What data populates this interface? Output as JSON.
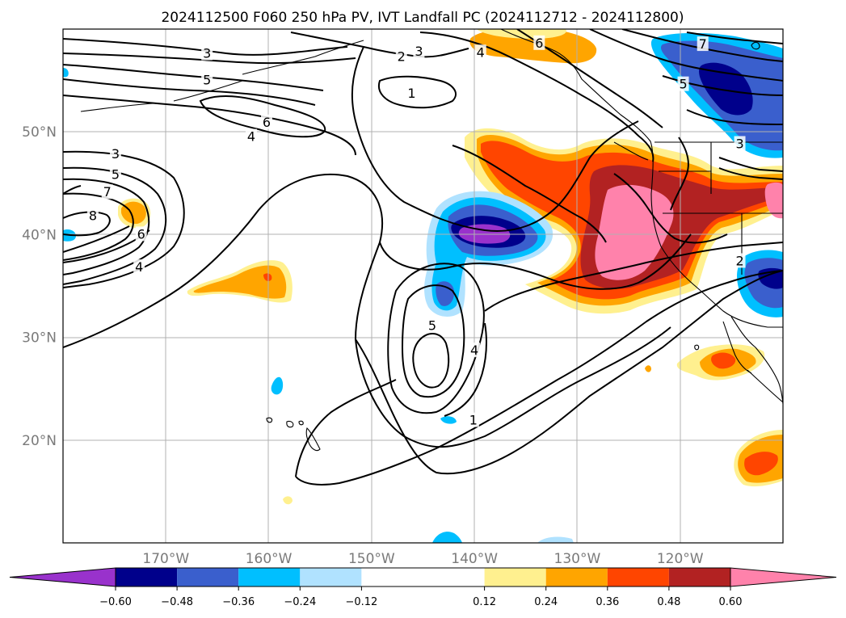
{
  "chart_data": {
    "type": "heatmap",
    "title": "2024112500 F060 250 hPa PV, IVT Landfall PC (2024112712 - 2024112800)",
    "map_extent": {
      "lon_min": -180,
      "lon_max": -110,
      "lat_min": 10,
      "lat_max": 60
    },
    "grid": true,
    "x_ticks": [
      {
        "lon": -170,
        "label": "170°W"
      },
      {
        "lon": -160,
        "label": "160°W"
      },
      {
        "lon": -150,
        "label": "150°W"
      },
      {
        "lon": -140,
        "label": "140°W"
      },
      {
        "lon": -130,
        "label": "130°W"
      },
      {
        "lon": -120,
        "label": "120°W"
      }
    ],
    "y_ticks": [
      {
        "lat": 50,
        "label": "50°N"
      },
      {
        "lat": 40,
        "label": "40°N"
      },
      {
        "lat": 30,
        "label": "30°N"
      },
      {
        "lat": 20,
        "label": "20°N"
      }
    ],
    "colorbar": {
      "orientation": "horizontal",
      "extend": "both",
      "boundaries": [
        -0.72,
        -0.6,
        -0.48,
        -0.36,
        -0.24,
        -0.12,
        0.12,
        0.24,
        0.36,
        0.48,
        0.6,
        0.72
      ],
      "colors": [
        "#9932cc",
        "#00008b",
        "#3a5fcd",
        "#00bfff",
        "#b0e2ff",
        "#ffffff",
        "#fff08f",
        "#ffa500",
        "#ff4500",
        "#b22222",
        "#ff82ab"
      ],
      "tick_labels": [
        "−0.60",
        "−0.48",
        "−0.36",
        "−0.24",
        "−0.12",
        "0.12",
        "0.24",
        "0.36",
        "0.48",
        "0.60"
      ]
    },
    "shaded_features": [
      {
        "lon": -133.5,
        "lat": 42.0,
        "value": 0.6,
        "note": "large positive anomaly off US west coast"
      },
      {
        "lon": -140.0,
        "lat": 40.0,
        "value": -0.66,
        "note": "negative anomaly west of positive"
      },
      {
        "lon": -116.0,
        "lat": 56.0,
        "value": -0.5
      },
      {
        "lon": -112.0,
        "lat": 36.0,
        "value": -0.45
      },
      {
        "lon": -143.5,
        "lat": 34.5,
        "value": -0.4
      },
      {
        "lon": -138.0,
        "lat": 58.5,
        "value": 0.3
      },
      {
        "lon": -160.0,
        "lat": 36.0,
        "value": 0.3
      },
      {
        "lon": -117.0,
        "lat": 29.0,
        "value": 0.3
      },
      {
        "lon": -112.5,
        "lat": 18.0,
        "value": 0.4
      },
      {
        "lon": -111.5,
        "lat": 43.0,
        "value": 0.5
      },
      {
        "lon": -176.0,
        "lat": 42.0,
        "value": 0.25
      }
    ],
    "contour_labels": [
      {
        "text": "3",
        "lon": -166.0,
        "lat": 57.6
      },
      {
        "text": "5",
        "lon": -166.0,
        "lat": 55.0
      },
      {
        "text": "6",
        "lon": -160.2,
        "lat": 50.9
      },
      {
        "text": "4",
        "lon": -161.7,
        "lat": 49.5
      },
      {
        "text": "3",
        "lon": -174.9,
        "lat": 47.8
      },
      {
        "text": "5",
        "lon": -174.9,
        "lat": 45.8
      },
      {
        "text": "7",
        "lon": -175.7,
        "lat": 44.1
      },
      {
        "text": "8",
        "lon": -177.1,
        "lat": 41.8
      },
      {
        "text": "6",
        "lon": -172.4,
        "lat": 40.0
      },
      {
        "text": "4",
        "lon": -172.6,
        "lat": 36.8
      },
      {
        "text": "2",
        "lon": -147.1,
        "lat": 57.3
      },
      {
        "text": "3",
        "lon": -145.4,
        "lat": 57.8
      },
      {
        "text": "4",
        "lon": -139.4,
        "lat": 57.7
      },
      {
        "text": "6",
        "lon": -133.7,
        "lat": 58.6
      },
      {
        "text": "7",
        "lon": -117.8,
        "lat": 58.5
      },
      {
        "text": "5",
        "lon": -119.7,
        "lat": 54.6
      },
      {
        "text": "1",
        "lon": -146.1,
        "lat": 53.7
      },
      {
        "text": "3",
        "lon": -114.2,
        "lat": 48.8
      },
      {
        "text": "2",
        "lon": -114.2,
        "lat": 37.4
      },
      {
        "text": "5",
        "lon": -144.1,
        "lat": 31.1
      },
      {
        "text": "4",
        "lon": -140.0,
        "lat": 28.7
      },
      {
        "text": "1",
        "lon": -140.1,
        "lat": 21.9
      }
    ]
  }
}
